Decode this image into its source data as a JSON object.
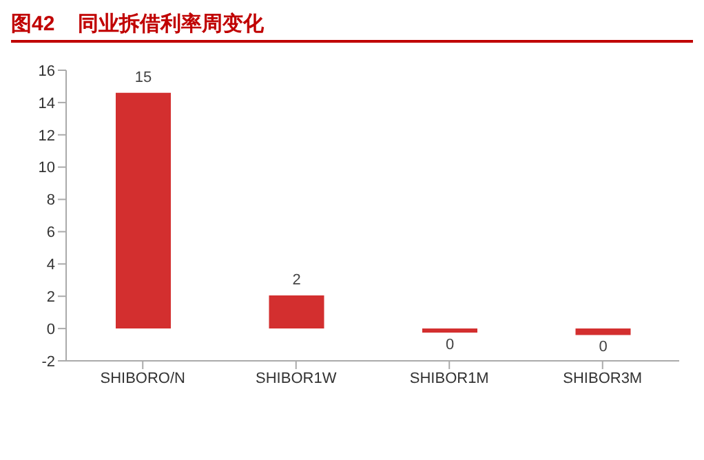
{
  "chart_data": {
    "type": "bar",
    "title": "图42    同业拆借利率周变化",
    "categories": [
      "SHIBORO/N",
      "SHIBOR1W",
      "SHIBOR1M",
      "SHIBOR3M"
    ],
    "values": [
      14.6,
      2.05,
      -0.25,
      -0.4
    ],
    "value_labels": [
      "15",
      "2",
      "0",
      "0"
    ],
    "color": "#d32f2f",
    "ylim": [
      -2,
      16
    ],
    "yticks": [
      -2,
      0,
      2,
      4,
      6,
      8,
      10,
      12,
      14,
      16
    ],
    "grid": false,
    "legend": false
  }
}
